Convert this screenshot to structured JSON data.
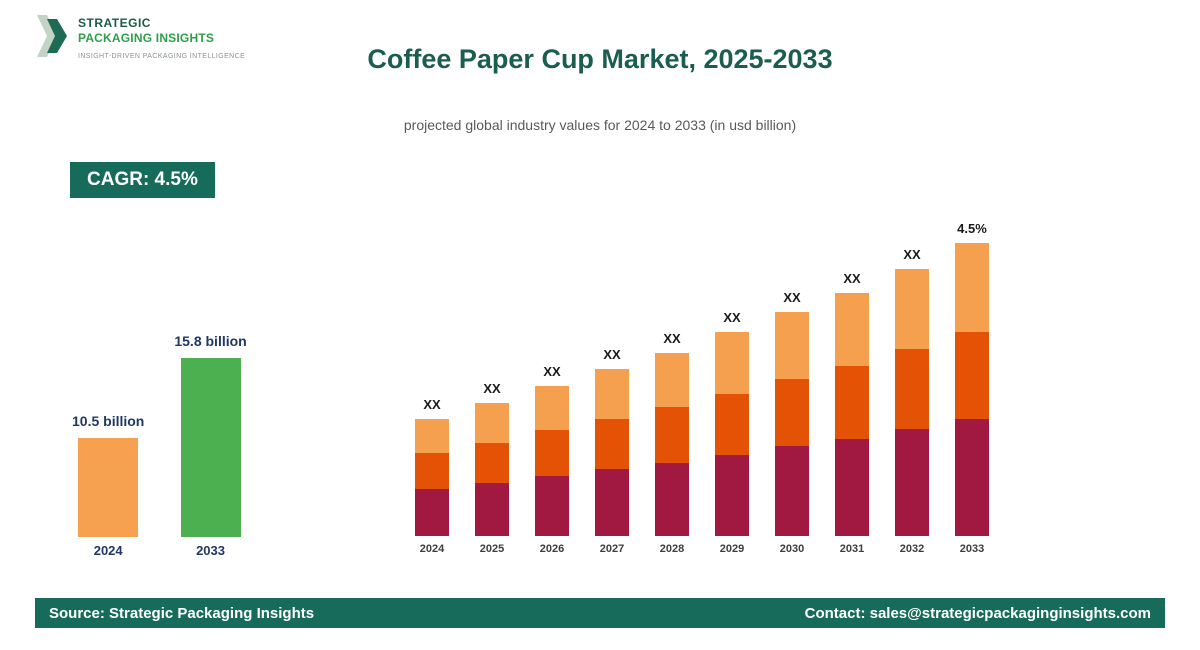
{
  "logo": {
    "name_line1": "STRATEGIC",
    "name_line2": "PACKAGING INSIGHTS",
    "tagline": "INSIGHT-DRIVEN PACKAGING INTELLIGENCE"
  },
  "header": {
    "title": "Coffee Paper Cup Market, 2025-2033",
    "subtitle": "projected global industry values for 2024 to 2033 (in usd billion)"
  },
  "cagr_badge": {
    "label": "CAGR: 4.5%"
  },
  "mini_chart": {
    "type": "bar",
    "bars": [
      {
        "year": "2024",
        "label": "10.5 billion",
        "value": 10.5,
        "color_key": "mini_orange"
      },
      {
        "year": "2033",
        "label": "15.8 billion",
        "value": 15.8,
        "color_key": "mini_green"
      }
    ]
  },
  "chart_data": {
    "type": "bar",
    "stacked": true,
    "title": "Coffee Paper Cup Market, 2025-2033",
    "subtitle": "projected global industry values for 2024 to 2033 (in usd billion)",
    "categories": [
      "2024",
      "2025",
      "2026",
      "2027",
      "2028",
      "2029",
      "2030",
      "2031",
      "2032",
      "2033"
    ],
    "series": [
      {
        "name": "bottom",
        "color": "#A11940",
        "values": [
          4.2,
          4.4,
          4.6,
          4.8,
          5.0,
          5.2,
          5.5,
          5.7,
          6.0,
          6.3
        ]
      },
      {
        "name": "middle",
        "color": "#E35205",
        "values": [
          3.2,
          3.3,
          3.5,
          3.6,
          3.8,
          3.9,
          4.1,
          4.3,
          4.5,
          4.7
        ]
      },
      {
        "name": "top",
        "color": "#F5A04E",
        "values": [
          3.1,
          3.3,
          3.4,
          3.6,
          3.7,
          4.0,
          4.1,
          4.3,
          4.5,
          4.8
        ]
      }
    ],
    "totals_estimated": [
      10.5,
      11.0,
      11.5,
      12.0,
      12.5,
      13.1,
      13.7,
      14.3,
      15.0,
      15.8
    ],
    "bar_labels": [
      "XX",
      "XX",
      "XX",
      "XX",
      "XX",
      "XX",
      "XX",
      "XX",
      "XX",
      "4.5%"
    ],
    "ylim": [
      7,
      16
    ],
    "grid": false,
    "legend": false
  },
  "footer": {
    "source": "Source: Strategic Packaging Insights",
    "contact": "Contact: sales@strategicpackaginginsights.com"
  },
  "colors": {
    "brand_dark_green": "#176B5B",
    "logo_green": "#2F9E49",
    "logo_dark": "#1C5B45",
    "title_teal": "#1B5E50",
    "subtitle_gray": "#595959",
    "bar_maroon": "#A11940",
    "bar_orange_red": "#E35205",
    "bar_light_orange": "#F5A04E",
    "mini_orange": "#F6A14F",
    "mini_green": "#4CAF50",
    "label_dark": "#1A1A1A",
    "value_navy": "#1F3864",
    "year_gray": "#3D3D3D"
  }
}
